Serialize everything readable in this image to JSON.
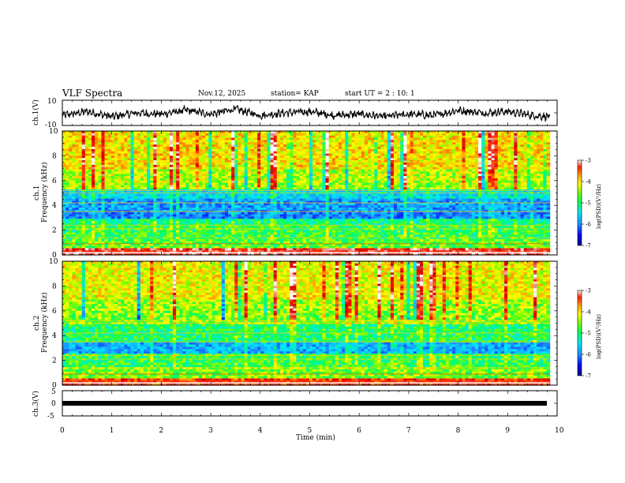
{
  "header": {
    "title": "VLF Spectra",
    "date": "Nov.12, 2025",
    "station": "station= KAP",
    "start": "start  UT =   2 : 10: 1"
  },
  "colors": {
    "trace": "#000000",
    "axis": "#000000",
    "colormap": [
      "#00008b",
      "#0000ff",
      "#1e90ff",
      "#00e5ff",
      "#00ff66",
      "#7cfc00",
      "#ffff00",
      "#ffa500",
      "#ff2000",
      "#d00000",
      "#ffffff"
    ]
  },
  "chart_data": [
    {
      "type": "line",
      "name": "ch1-waveform",
      "ylabel": "ch.1(V)",
      "ylim": [
        -10,
        10
      ],
      "yticks": [
        "10",
        "-10"
      ],
      "x_range_min": [
        0,
        9.85
      ],
      "x": [
        0,
        0.5,
        1,
        1.5,
        2,
        2.5,
        3,
        3.5,
        4,
        4.5,
        5,
        5.5,
        6,
        6.5,
        7,
        7.5,
        8,
        8.5,
        9,
        9.5,
        9.85
      ],
      "values": [
        -2,
        1,
        -3,
        0,
        -1,
        2,
        -1,
        3,
        -2,
        0,
        1,
        -2,
        -1,
        -3,
        -1,
        -2,
        2,
        0,
        1,
        -2,
        -3
      ]
    },
    {
      "type": "heatmap",
      "name": "ch1-spectrogram",
      "ylabel_top": "ch.1",
      "ylabel": "Frequency (kHz)",
      "ylim": [
        0,
        10
      ],
      "yticks": [
        "0",
        "2",
        "4",
        "6",
        "8",
        "10"
      ],
      "colorbar": {
        "label": "log(PSD)(V²/Hz)",
        "ticks": [
          "-3",
          "-4",
          "-5",
          "-6",
          "-7"
        ],
        "range": [
          -7,
          -3
        ]
      },
      "bands_khz_level": [
        [
          0,
          0.5,
          -3.2
        ],
        [
          0.5,
          1.3,
          -4.8
        ],
        [
          1.3,
          2.4,
          -5.0
        ],
        [
          2.4,
          3.0,
          -5.2
        ],
        [
          3.0,
          3.5,
          -6.1
        ],
        [
          3.5,
          4.6,
          -6.0
        ],
        [
          4.6,
          5.2,
          -5.6
        ],
        [
          5.2,
          5.8,
          -4.6
        ],
        [
          5.8,
          7.0,
          -4.5
        ],
        [
          7.0,
          10,
          -4.2
        ]
      ]
    },
    {
      "type": "heatmap",
      "name": "ch2-spectrogram",
      "ylabel_top": "ch.2",
      "ylabel": "Frequency (kHz)",
      "ylim": [
        0,
        10
      ],
      "yticks": [
        "0",
        "2",
        "4",
        "6",
        "8",
        "10"
      ],
      "colorbar": {
        "label": "log(PSD)(V²/Hz)",
        "ticks": [
          "-3",
          "-4",
          "-5",
          "-6",
          "-7"
        ],
        "range": [
          -7,
          -3
        ]
      },
      "bands_khz_level": [
        [
          0,
          0.5,
          -3.5
        ],
        [
          0.5,
          1.5,
          -4.7
        ],
        [
          1.5,
          2.5,
          -5.0
        ],
        [
          2.5,
          3.5,
          -5.9
        ],
        [
          3.5,
          5.0,
          -5.1
        ],
        [
          5.0,
          6.0,
          -4.7
        ],
        [
          6.0,
          7.0,
          -4.6
        ],
        [
          7.0,
          10,
          -4.3
        ]
      ]
    },
    {
      "type": "line",
      "name": "ch3-waveform",
      "ylabel": "ch.3(V)",
      "ylim": [
        -5,
        5
      ],
      "yticks": [
        "5",
        "0",
        "-5"
      ],
      "x_range_min": [
        0,
        9.85
      ],
      "level_v": 0
    }
  ],
  "xaxis": {
    "label": "Time (min)",
    "ticks": [
      "0",
      "1",
      "2",
      "3",
      "4",
      "5",
      "6",
      "7",
      "8",
      "9",
      "10"
    ],
    "range": [
      0,
      10
    ]
  }
}
